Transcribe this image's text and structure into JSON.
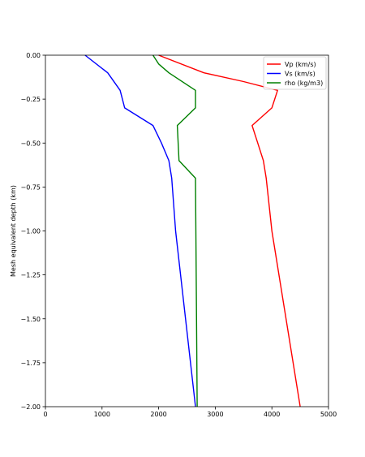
{
  "chart_data": {
    "type": "line",
    "title": "",
    "xlabel": "",
    "ylabel": "Mesh equivalent depth (km)",
    "xlim": [
      0,
      5000
    ],
    "ylim": [
      -2.0,
      0.0
    ],
    "xticks": [
      0,
      1000,
      2000,
      3000,
      4000,
      5000
    ],
    "yticks": [
      0.0,
      -0.25,
      -0.5,
      -0.75,
      -1.0,
      -1.25,
      -1.5,
      -1.75,
      -2.0
    ],
    "xtick_labels": [
      "0",
      "1000",
      "2000",
      "3000",
      "4000",
      "5000"
    ],
    "ytick_labels": [
      "0.00",
      "−0.25",
      "−0.50",
      "−0.75",
      "−1.00",
      "−1.25",
      "−1.50",
      "−1.75",
      "−2.00"
    ],
    "grid": false,
    "legend_position": "top-right",
    "series": [
      {
        "name": "Vp (km/s)",
        "color": "#ff0000",
        "points": [
          [
            2000,
            0.0
          ],
          [
            2800,
            -0.1
          ],
          [
            3500,
            -0.15
          ],
          [
            4100,
            -0.2
          ],
          [
            4000,
            -0.3
          ],
          [
            3650,
            -0.4
          ],
          [
            3750,
            -0.5
          ],
          [
            3850,
            -0.6
          ],
          [
            3900,
            -0.7
          ],
          [
            4000,
            -1.0
          ],
          [
            4500,
            -2.0
          ]
        ]
      },
      {
        "name": "Vs (km/s)",
        "color": "#0000ff",
        "points": [
          [
            700,
            0.0
          ],
          [
            1100,
            -0.1
          ],
          [
            1320,
            -0.2
          ],
          [
            1400,
            -0.3
          ],
          [
            1900,
            -0.4
          ],
          [
            2050,
            -0.5
          ],
          [
            2180,
            -0.6
          ],
          [
            2230,
            -0.7
          ],
          [
            2300,
            -1.0
          ],
          [
            2650,
            -2.0
          ]
        ]
      },
      {
        "name": "rho (kg/m3)",
        "color": "#008000",
        "points": [
          [
            1900,
            0.0
          ],
          [
            2000,
            -0.05
          ],
          [
            2180,
            -0.1
          ],
          [
            2650,
            -0.2
          ],
          [
            2650,
            -0.3
          ],
          [
            2330,
            -0.4
          ],
          [
            2360,
            -0.6
          ],
          [
            2650,
            -0.7
          ],
          [
            2680,
            -2.0
          ]
        ]
      }
    ]
  }
}
